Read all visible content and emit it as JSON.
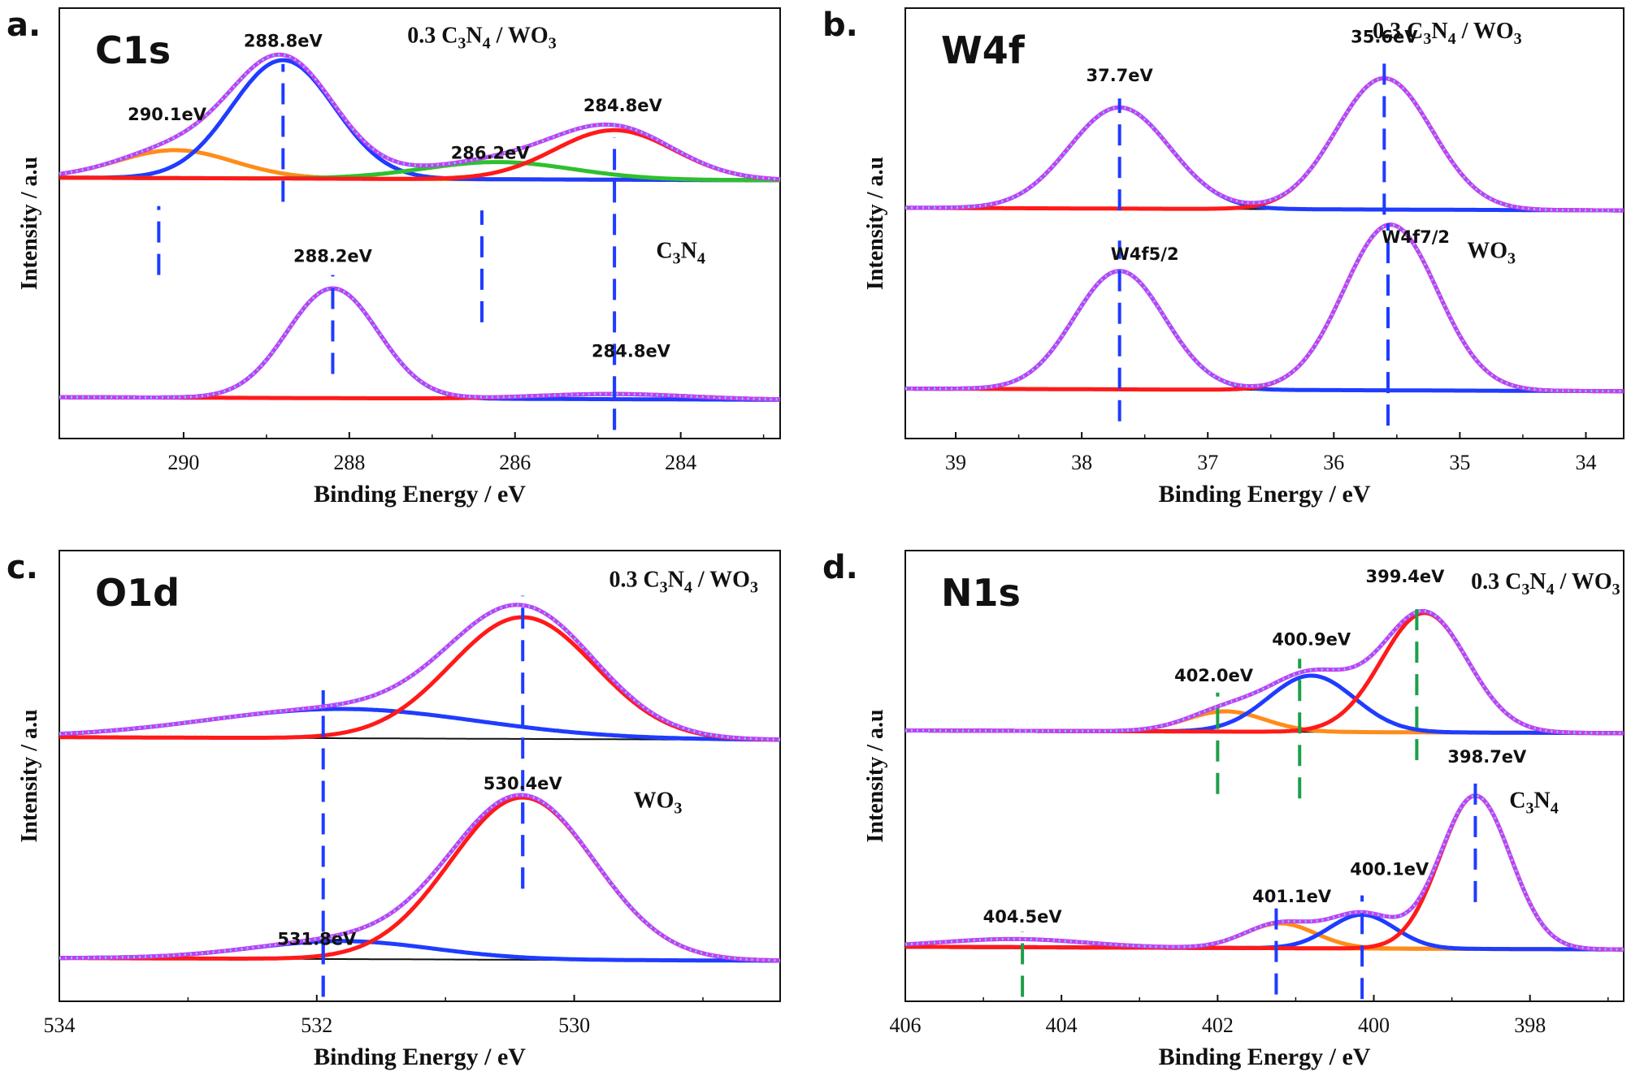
{
  "colors": {
    "axis": "#111111",
    "blue": "#1f3cff",
    "red": "#ff1a1a",
    "magenta": "#c43cff",
    "orange": "#ff8c1a",
    "green": "#2ec02e",
    "raw": "#7fd0d0",
    "baseline": "#111111",
    "marker_blue": "#1f3cff",
    "marker_green": "#1e9e4a"
  },
  "chart_data": [
    {
      "id": "a",
      "type": "line",
      "panel_label": "a.",
      "title": "C1s",
      "xlabel": "Binding Energy / eV",
      "ylabel": "Intensity / a.u",
      "xlim": [
        291.5,
        282.8
      ],
      "ylim": [
        0,
        10
      ],
      "xticks": [
        290,
        288,
        286,
        284
      ],
      "samples": [
        {
          "name": "0.3 C3N4 / WO3",
          "label": {
            "main": "0.3 C",
            "s1": "3",
            "m2": "N",
            "s2": "4",
            "tail": " / WO",
            "s3": "3"
          },
          "label_pos": [
            286.4,
            9.2
          ],
          "offset": 6.0,
          "components": [
            {
              "name": "peak-290.1",
              "center": 290.1,
              "height": 0.65,
              "sigma": 0.7,
              "color": "orange"
            },
            {
              "name": "peak-288.8",
              "center": 288.8,
              "height": 2.75,
              "sigma": 0.62,
              "color": "blue"
            },
            {
              "name": "peak-286.2",
              "center": 286.2,
              "height": 0.4,
              "sigma": 0.9,
              "color": "green"
            },
            {
              "name": "peak-284.8",
              "center": 284.8,
              "height": 1.15,
              "sigma": 0.72,
              "color": "red"
            }
          ],
          "markers": [
            {
              "x": 290.3,
              "y1": 3.8,
              "y2": 5.4,
              "label": "290.1eV",
              "lx": 290.2,
              "ly": 7.4,
              "color": "marker_blue"
            },
            {
              "x": 288.8,
              "y1": 5.5,
              "y2": 8.7,
              "label": "288.8eV",
              "lx": 288.8,
              "ly": 9.1,
              "color": "marker_blue"
            },
            {
              "x": 286.4,
              "y1": 2.7,
              "y2": 5.3,
              "label": "286.2eV",
              "lx": 286.3,
              "ly": 6.5,
              "color": "marker_blue"
            },
            {
              "x": 284.8,
              "y1": 0.2,
              "y2": 7.0,
              "label": "284.8eV",
              "lx": 284.7,
              "ly": 7.6,
              "color": "marker_blue"
            }
          ]
        },
        {
          "name": "C3N4",
          "label": {
            "main": "C",
            "s1": "3",
            "m2": "N",
            "s2": "4",
            "tail": "",
            "s3": ""
          },
          "label_pos": [
            284.0,
            4.2
          ],
          "offset": 0.9,
          "components": [
            {
              "name": "peak-288.2",
              "center": 288.2,
              "height": 2.55,
              "sigma": 0.55,
              "color": "blue"
            },
            {
              "name": "peak-284.8",
              "center": 284.8,
              "height": 0.12,
              "sigma": 0.9,
              "color": "red"
            }
          ],
          "markers": [
            {
              "x": 288.2,
              "y1": 1.5,
              "y2": 3.8,
              "label": "288.2eV",
              "lx": 288.2,
              "ly": 4.1,
              "color": "marker_blue"
            },
            {
              "x": 284.8,
              "y1": 0.2,
              "y2": 2.0,
              "label": "284.8eV",
              "lx": 284.6,
              "ly": 1.9,
              "color": "marker_blue"
            }
          ]
        }
      ]
    },
    {
      "id": "b",
      "type": "line",
      "panel_label": "b.",
      "title": "W4f",
      "xlabel": "Binding Energy / eV",
      "ylabel": "Intensity / a.u",
      "xlim": [
        39.4,
        33.7
      ],
      "ylim": [
        0,
        10
      ],
      "xticks": [
        39,
        38,
        37,
        36,
        35,
        34
      ],
      "samples": [
        {
          "name": "0.3 C3N4 / WO3",
          "label": {
            "main": "0.3 C",
            "s1": "3",
            "m2": "N",
            "s2": "4",
            "tail": " / WO",
            "s3": "3"
          },
          "label_pos": [
            35.1,
            9.3
          ],
          "offset": 5.3,
          "components": [
            {
              "name": "peak-37.7",
              "center": 37.7,
              "height": 2.35,
              "sigma": 0.4,
              "color": "blue"
            },
            {
              "name": "peak-35.6",
              "center": 35.6,
              "height": 3.05,
              "sigma": 0.38,
              "color": "red"
            }
          ],
          "markers": [
            {
              "x": 37.7,
              "y1": 5.3,
              "y2": 7.9,
              "label": "37.7eV",
              "lx": 37.7,
              "ly": 8.3,
              "color": "marker_blue"
            },
            {
              "x": 35.6,
              "y1": 5.2,
              "y2": 8.9,
              "label": "35.6eV",
              "lx": 35.6,
              "ly": 9.2,
              "color": "marker_blue"
            }
          ]
        },
        {
          "name": "WO3",
          "label": {
            "main": "WO",
            "s1": "3",
            "m2": "",
            "s2": "",
            "tail": "",
            "s3": ""
          },
          "label_pos": [
            34.75,
            4.2
          ],
          "offset": 1.1,
          "components": [
            {
              "name": "W4f5/2",
              "center": 37.7,
              "height": 2.75,
              "sigma": 0.36,
              "color": "blue"
            },
            {
              "name": "W4f7/2",
              "center": 35.55,
              "height": 3.85,
              "sigma": 0.37,
              "color": "red"
            }
          ],
          "markers": [
            {
              "x": 37.7,
              "y1": 0.4,
              "y2": 4.6,
              "label": "W4f5/2",
              "lx": 37.5,
              "ly": 4.15,
              "color": "marker_blue"
            },
            {
              "x": 35.57,
              "y1": 0.3,
              "y2": 5.0,
              "label": "W4f7/2",
              "lx": 35.35,
              "ly": 4.55,
              "color": "marker_blue"
            }
          ]
        }
      ]
    },
    {
      "id": "c",
      "type": "line",
      "panel_label": "c.",
      "title": "O1d",
      "xlabel": "Binding Energy / eV",
      "ylabel": "Intensity / a.u",
      "xlim": [
        534.0,
        528.4
      ],
      "ylim": [
        0,
        10
      ],
      "xticks": [
        534,
        532,
        530
      ],
      "samples": [
        {
          "name": "0.3 C3N4 / WO3",
          "label": {
            "main": "0.3 C",
            "s1": "3",
            "m2": "N",
            "s2": "4",
            "tail": " / WO",
            "s3": "3"
          },
          "label_pos": [
            529.15,
            9.2
          ],
          "offset": 5.8,
          "components": [
            {
              "name": "peak-531.8",
              "center": 531.8,
              "height": 0.65,
              "sigma": 1.05,
              "color": "blue"
            },
            {
              "name": "peak-530.4",
              "center": 530.4,
              "height": 2.7,
              "sigma": 0.56,
              "color": "red"
            }
          ],
          "markers": [
            {
              "x": 531.95,
              "y1": 0.1,
              "y2": 6.9,
              "label": "",
              "lx": 0,
              "ly": 0,
              "color": "marker_blue"
            },
            {
              "x": 530.4,
              "y1": 2.5,
              "y2": 9.0,
              "label": "",
              "lx": 0,
              "ly": 0,
              "color": "marker_blue"
            }
          ]
        },
        {
          "name": "WO3",
          "label": {
            "main": "WO",
            "s1": "3",
            "m2": "",
            "s2": "",
            "tail": "",
            "s3": ""
          },
          "label_pos": [
            529.35,
            4.3
          ],
          "offset": 0.9,
          "components": [
            {
              "name": "peak-531.8",
              "center": 531.8,
              "height": 0.4,
              "sigma": 0.7,
              "color": "blue"
            },
            {
              "name": "peak-530.4",
              "center": 530.4,
              "height": 3.6,
              "sigma": 0.56,
              "color": "red"
            }
          ],
          "markers": [
            {
              "x": 530.4,
              "y1": 2.5,
              "y2": 4.5,
              "label": "530.4eV",
              "lx": 530.4,
              "ly": 4.7,
              "color": "marker_blue"
            },
            {
              "x": 531.95,
              "y1": 0.1,
              "y2": 1.5,
              "label": "531.8eV",
              "lx": 532.0,
              "ly": 1.25,
              "color": "marker_blue"
            }
          ]
        }
      ]
    },
    {
      "id": "d",
      "type": "line",
      "panel_label": "d.",
      "title": "N1s",
      "xlabel": "Binding Energy / eV",
      "ylabel": "Intensity / a.u",
      "xlim": [
        406.0,
        396.8
      ],
      "ylim": [
        0,
        10
      ],
      "xticks": [
        406,
        404,
        402,
        400,
        398
      ],
      "samples": [
        {
          "name": "0.3 C3N4 / WO3",
          "label": {
            "main": "0.3 C",
            "s1": "3",
            "m2": "N",
            "s2": "4",
            "tail": " / WO",
            "s3": "3"
          },
          "label_pos": [
            397.8,
            9.15
          ],
          "offset": 5.95,
          "components": [
            {
              "name": "peak-402.0",
              "center": 401.9,
              "height": 0.45,
              "sigma": 0.5,
              "color": "orange"
            },
            {
              "name": "peak-400.9",
              "center": 400.8,
              "height": 1.25,
              "sigma": 0.55,
              "color": "blue"
            },
            {
              "name": "peak-399.4",
              "center": 399.35,
              "height": 2.65,
              "sigma": 0.55,
              "color": "red"
            }
          ],
          "markers": [
            {
              "x": 402.0,
              "y1": 4.6,
              "y2": 6.85,
              "label": "402.0eV",
              "lx": 402.05,
              "ly": 7.1,
              "color": "marker_green"
            },
            {
              "x": 400.95,
              "y1": 4.5,
              "y2": 7.6,
              "label": "400.9eV",
              "lx": 400.8,
              "ly": 7.9,
              "color": "marker_green"
            },
            {
              "x": 399.45,
              "y1": 5.35,
              "y2": 8.85,
              "label": "399.4eV",
              "lx": 399.6,
              "ly": 9.3,
              "color": "marker_green"
            }
          ]
        },
        {
          "name": "C3N4",
          "label": {
            "main": "C",
            "s1": "3",
            "m2": "N",
            "s2": "4",
            "tail": "",
            "s3": ""
          },
          "label_pos": [
            397.95,
            4.3
          ],
          "offset": 1.15,
          "components": [
            {
              "name": "peak-404.5",
              "center": 404.6,
              "height": 0.18,
              "sigma": 0.9,
              "color": "orange"
            },
            {
              "name": "peak-401.1",
              "center": 401.2,
              "height": 0.55,
              "sigma": 0.45,
              "color": "orange"
            },
            {
              "name": "peak-400.1",
              "center": 400.15,
              "height": 0.75,
              "sigma": 0.42,
              "color": "blue"
            },
            {
              "name": "peak-398.7",
              "center": 398.7,
              "height": 3.4,
              "sigma": 0.45,
              "color": "red"
            }
          ],
          "markers": [
            {
              "x": 404.5,
              "y1": 0.1,
              "y2": 1.55,
              "label": "404.5eV",
              "lx": 404.5,
              "ly": 1.75,
              "color": "marker_green"
            },
            {
              "x": 401.25,
              "y1": 0.15,
              "y2": 2.1,
              "label": "401.1eV",
              "lx": 401.05,
              "ly": 2.2,
              "color": "marker_blue"
            },
            {
              "x": 400.15,
              "y1": 0.05,
              "y2": 2.35,
              "label": "400.1eV",
              "lx": 399.8,
              "ly": 2.8,
              "color": "marker_blue"
            },
            {
              "x": 398.7,
              "y1": 2.2,
              "y2": 5.0,
              "label": "398.7eV",
              "lx": 398.55,
              "ly": 5.3,
              "color": "marker_blue"
            }
          ]
        }
      ]
    }
  ]
}
